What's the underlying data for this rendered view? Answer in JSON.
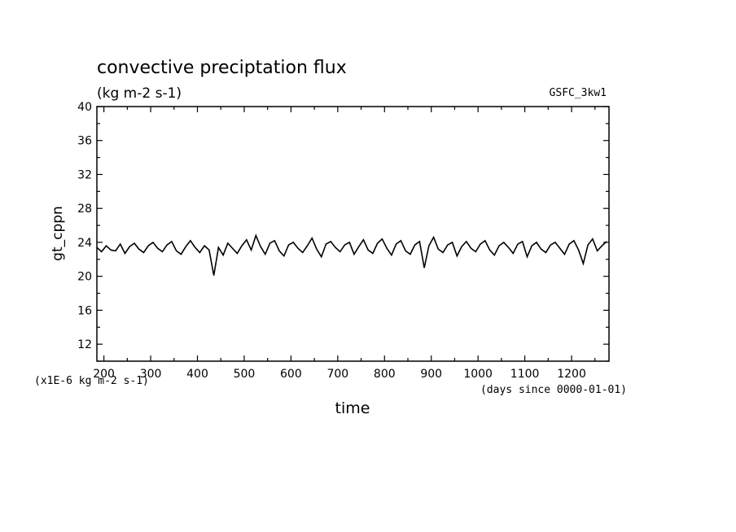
{
  "chart_data": {
    "type": "line",
    "title": "convective preciptation flux",
    "subtitle": "(kg m-2 s-1)",
    "annotation": "GSFC_3kw1",
    "xlabel": "time",
    "x_unit_label": "(days since 0000-01-01)",
    "ylabel": "gt_cppn",
    "y_unit_label": "(x1E-6 kg m-2 s-1)",
    "xlim": [
      185,
      1280
    ],
    "ylim": [
      10,
      40
    ],
    "x_ticks": [
      200,
      300,
      400,
      500,
      600,
      700,
      800,
      900,
      1000,
      1100,
      1200
    ],
    "y_ticks": [
      12,
      16,
      20,
      24,
      28,
      32,
      36,
      40
    ],
    "grid": false,
    "series": [
      {
        "color": "#000000",
        "x": [
          185,
          195,
          205,
          215,
          225,
          235,
          245,
          255,
          265,
          275,
          285,
          295,
          305,
          315,
          325,
          335,
          345,
          355,
          365,
          375,
          385,
          395,
          405,
          415,
          425,
          435,
          445,
          455,
          465,
          475,
          485,
          495,
          505,
          515,
          525,
          535,
          545,
          555,
          565,
          575,
          585,
          595,
          605,
          615,
          625,
          635,
          645,
          655,
          665,
          675,
          685,
          695,
          705,
          715,
          725,
          735,
          745,
          755,
          765,
          775,
          785,
          795,
          805,
          815,
          825,
          835,
          845,
          855,
          865,
          875,
          885,
          895,
          905,
          915,
          925,
          935,
          945,
          955,
          965,
          975,
          985,
          995,
          1005,
          1015,
          1025,
          1035,
          1045,
          1055,
          1065,
          1075,
          1085,
          1095,
          1105,
          1115,
          1125,
          1135,
          1145,
          1155,
          1165,
          1175,
          1185,
          1195,
          1205,
          1215,
          1225,
          1235,
          1245,
          1255,
          1265,
          1275
        ],
        "values": [
          23.4,
          22.9,
          23.6,
          23.1,
          23.0,
          23.8,
          22.7,
          23.5,
          23.9,
          23.2,
          22.8,
          23.6,
          24.0,
          23.3,
          22.9,
          23.7,
          24.1,
          23.0,
          22.6,
          23.5,
          24.2,
          23.4,
          22.8,
          23.6,
          23.1,
          20.1,
          23.4,
          22.5,
          23.9,
          23.3,
          22.7,
          23.6,
          24.3,
          23.1,
          24.8,
          23.5,
          22.6,
          23.9,
          24.2,
          23.0,
          22.4,
          23.7,
          24.0,
          23.3,
          22.8,
          23.6,
          24.5,
          23.2,
          22.3,
          23.8,
          24.1,
          23.4,
          22.9,
          23.7,
          24.0,
          22.6,
          23.5,
          24.3,
          23.1,
          22.7,
          23.9,
          24.4,
          23.3,
          22.5,
          23.8,
          24.2,
          23.0,
          22.6,
          23.7,
          24.1,
          21.0,
          23.6,
          24.6,
          23.2,
          22.8,
          23.7,
          24.0,
          22.4,
          23.5,
          24.1,
          23.3,
          22.9,
          23.8,
          24.2,
          23.1,
          22.5,
          23.6,
          24.0,
          23.4,
          22.7,
          23.8,
          24.1,
          22.3,
          23.6,
          24.0,
          23.2,
          22.8,
          23.7,
          24.0,
          23.3,
          22.6,
          23.8,
          24.2,
          23.1,
          21.5,
          23.7,
          24.4,
          23.0,
          23.6,
          24.1
        ]
      }
    ]
  }
}
